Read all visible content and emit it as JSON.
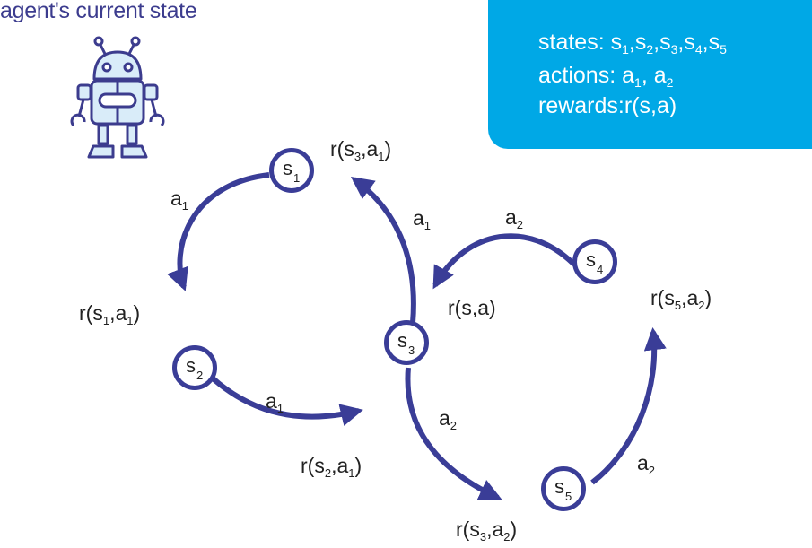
{
  "title": "agent's current state",
  "colors": {
    "arrow": "#3a3d97",
    "info_box": "#00a8e6",
    "robot_stroke": "#3c3c8e",
    "robot_fill": "#d9ecf9"
  },
  "info": {
    "states_label": "states:",
    "states": [
      "s1",
      "s2",
      "s3",
      "s4",
      "s5"
    ],
    "actions_label": "actions:",
    "actions": [
      "a1",
      "a2"
    ],
    "rewards_label": "rewards:",
    "rewards_value": "r(s,a)"
  },
  "nodes": [
    {
      "id": "s1",
      "letter": "s",
      "sub": "1"
    },
    {
      "id": "s2",
      "letter": "s",
      "sub": "2"
    },
    {
      "id": "s3",
      "letter": "s",
      "sub": "3"
    },
    {
      "id": "s4",
      "letter": "s",
      "sub": "4"
    },
    {
      "id": "s5",
      "letter": "s",
      "sub": "5"
    }
  ],
  "action_labels": [
    {
      "id": "s1-a1",
      "letter": "a",
      "sub": "1"
    },
    {
      "id": "s2-a1",
      "letter": "a",
      "sub": "1"
    },
    {
      "id": "s3-a1",
      "letter": "a",
      "sub": "1"
    },
    {
      "id": "s4-a2",
      "letter": "a",
      "sub": "2"
    },
    {
      "id": "s3-a2",
      "letter": "a",
      "sub": "2"
    },
    {
      "id": "s5-a2",
      "letter": "a",
      "sub": "2"
    }
  ],
  "rewards": [
    {
      "id": "r-s1-a1",
      "s": "1",
      "a": "1"
    },
    {
      "id": "r-s2-a1",
      "s": "2",
      "a": "1"
    },
    {
      "id": "r-s3-a1",
      "s": "3",
      "a": "1"
    },
    {
      "id": "r-s3-a2",
      "s": "3",
      "a": "2"
    },
    {
      "id": "r-s5-a2",
      "s": "5",
      "a": "2"
    },
    {
      "id": "r-generic",
      "text": "r(s,a)"
    }
  ]
}
